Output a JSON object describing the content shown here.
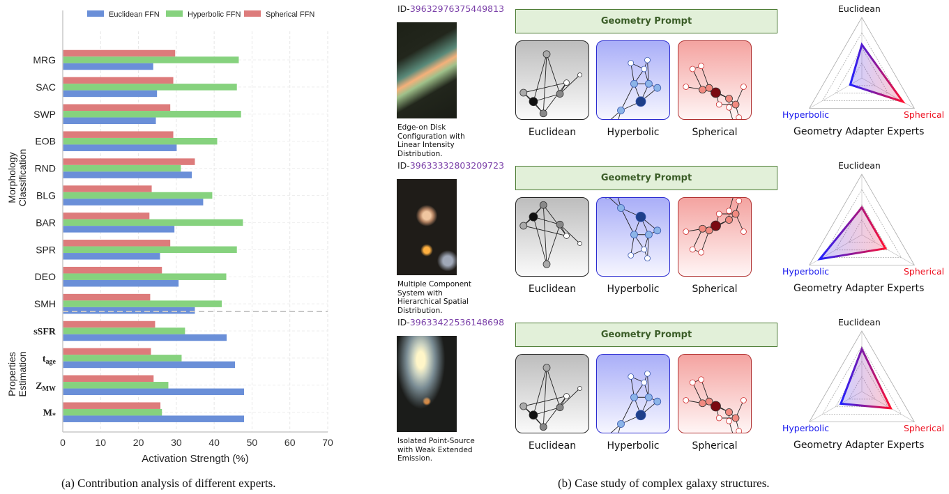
{
  "chart_data": {
    "type": "bar",
    "orientation": "horizontal",
    "categories": [
      "MRG",
      "SAC",
      "SWP",
      "EOB",
      "RND",
      "BLG",
      "BAR",
      "SPR",
      "DEO",
      "SMH",
      "sSFR",
      "t_age",
      "Z_MW",
      "M*"
    ],
    "category_display": [
      {
        "main": "MRG",
        "sub": ""
      },
      {
        "main": "SAC",
        "sub": ""
      },
      {
        "main": "SWP",
        "sub": ""
      },
      {
        "main": "EOB",
        "sub": ""
      },
      {
        "main": "RND",
        "sub": ""
      },
      {
        "main": "BLG",
        "sub": ""
      },
      {
        "main": "BAR",
        "sub": ""
      },
      {
        "main": "SPR",
        "sub": ""
      },
      {
        "main": "DEO",
        "sub": ""
      },
      {
        "main": "SMH",
        "sub": ""
      },
      {
        "main": "sSFR",
        "sub": ""
      },
      {
        "main": "t",
        "sub": "age"
      },
      {
        "main": "Z",
        "sub": "MW"
      },
      {
        "main": "M",
        "sub": "*"
      }
    ],
    "groups": [
      {
        "label": "Morphology Classification",
        "lines": [
          "Morphology",
          "Classification"
        ],
        "categories": [
          "MRG",
          "SAC",
          "SWP",
          "EOB",
          "RND",
          "BLG",
          "BAR",
          "SPR",
          "DEO",
          "SMH"
        ]
      },
      {
        "label": "Properties Estimation",
        "lines": [
          "Properties",
          "Estimation"
        ],
        "categories": [
          "sSFR",
          "t_age",
          "Z_MW",
          "M*"
        ]
      }
    ],
    "series": [
      {
        "name": "Euclidean FFN",
        "color": "#6a8fd8",
        "values": [
          23.9,
          24.9,
          24.6,
          30.1,
          34.1,
          37.1,
          29.5,
          25.7,
          30.6,
          34.9,
          43.3,
          45.5,
          47.9,
          47.9
        ]
      },
      {
        "name": "Hyperbolic FFN",
        "color": "#86d27e",
        "values": [
          46.5,
          46.0,
          47.1,
          40.8,
          31.2,
          39.5,
          47.6,
          46.0,
          43.2,
          42.0,
          32.3,
          31.4,
          27.9,
          26.2
        ]
      },
      {
        "name": "Spherical FFN",
        "color": "#dd7b7b",
        "values": [
          29.7,
          29.2,
          28.4,
          29.2,
          34.9,
          23.5,
          22.9,
          28.4,
          26.2,
          23.1,
          24.4,
          23.3,
          24.0,
          25.8
        ]
      }
    ],
    "xlabel": "Activation Strength (%)",
    "xlim": [
      0,
      70
    ],
    "xticks": [
      "0",
      "10",
      "20",
      "30",
      "40",
      "50",
      "60",
      "70"
    ],
    "grid": true,
    "legend": "top"
  },
  "captions": {
    "a": "(a) Contribution analysis of different experts.",
    "b": "(b) Case study of complex galaxy structures."
  },
  "case_study": {
    "prompt_label": "Geometry Prompt",
    "geometry_labels": [
      "Euclidean",
      "Hyperbolic",
      "Spherical"
    ],
    "radar_title": "Geometry Adapter Experts",
    "radar_axes": [
      "Euclidean",
      "Hyperbolic",
      "Spherical"
    ],
    "id_prefix": "ID-",
    "rows": [
      {
        "id": "39632976375449813",
        "caption": "Edge-on Disk Configuration with Linear Intensity Distribution.",
        "radar": {
          "Euclidean": 0.55,
          "Hyperbolic": 0.22,
          "Spherical": 0.78
        }
      },
      {
        "id": "39633332803209723",
        "caption": "Multiple Component System with Hierarchical Spatial Distribution.",
        "radar": {
          "Euclidean": 0.45,
          "Hyperbolic": 0.8,
          "Spherical": 0.45
        }
      },
      {
        "id": "39633422536148698",
        "caption": "Isolated Point-Source with Weak Extended Emission.",
        "radar": {
          "Euclidean": 0.7,
          "Hyperbolic": 0.4,
          "Spherical": 0.55
        }
      }
    ]
  }
}
